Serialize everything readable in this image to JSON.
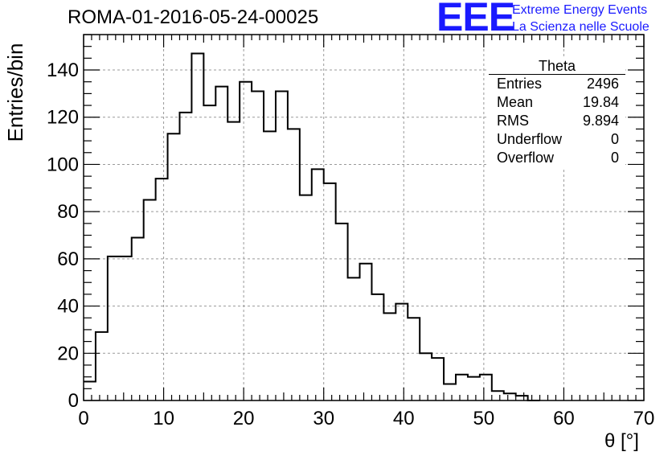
{
  "title": "ROMA-01-2016-05-24-00025",
  "logo": {
    "mark": "EEE",
    "line1": "Extreme Energy Events",
    "line2": "La Scienza nelle Scuole",
    "color": "#1a1aff"
  },
  "stats_box": {
    "title": "Theta",
    "rows": [
      {
        "label": "Entries",
        "value": "2496"
      },
      {
        "label": "Mean",
        "value": "19.84"
      },
      {
        "label": "RMS",
        "value": "9.894"
      },
      {
        "label": "Underflow",
        "value": "0"
      },
      {
        "label": "Overflow",
        "value": "0"
      }
    ]
  },
  "chart_data": {
    "type": "bar",
    "style": "step-histogram",
    "title": "ROMA-01-2016-05-24-00025",
    "xlabel": "θ [°]",
    "ylabel": "Entries/bin",
    "xlim": [
      0,
      70
    ],
    "ylim": [
      0,
      155
    ],
    "bin_width": 1.5,
    "bin_edges_start": 0,
    "values": [
      8,
      29,
      61,
      61,
      69,
      85,
      94,
      113,
      122,
      147,
      125,
      133,
      118,
      135,
      131,
      114,
      131,
      115,
      87,
      98,
      92,
      75,
      52,
      58,
      45,
      37,
      41,
      35,
      20,
      18,
      7,
      11,
      10,
      11,
      4,
      3,
      2,
      0
    ],
    "x_ticks": [
      0,
      10,
      20,
      30,
      40,
      50,
      60,
      70
    ],
    "y_ticks": [
      0,
      20,
      40,
      60,
      80,
      100,
      120,
      140
    ],
    "grid": true,
    "line_color": "#000000",
    "grid_color": "#999999"
  }
}
